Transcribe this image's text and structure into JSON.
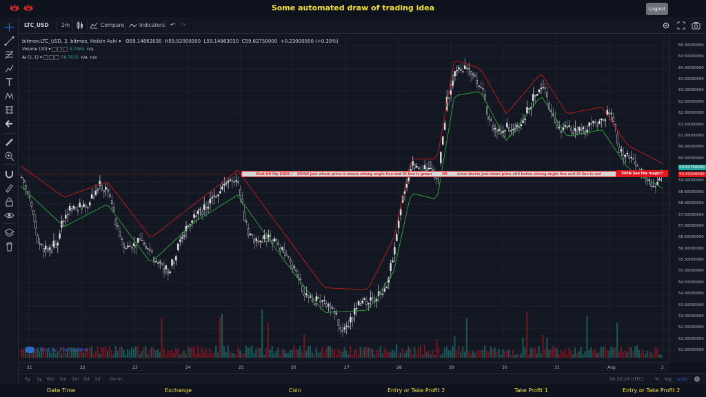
{
  "header": {
    "title": "Some automated draw of trading idea",
    "logout_label": "Logout"
  },
  "toolbar": {
    "symbol": "LTC_USD",
    "interval": "2m",
    "compare_label": "Compare",
    "indicators_label": "Indicators"
  },
  "legend": {
    "symbol_line": "bitmex:LTC_USD, 2, bitmex, Heikin Ashi",
    "open": "O59.14863030",
    "high": "H59.92000000",
    "low": "L59.14863030",
    "close": "C59.62750000",
    "change": "+0.23000000 (+0.39%)",
    "volume_label": "Volume (20)",
    "volume_value": "8.7884",
    "volume_na": "n/a",
    "ai_label": "AI (1, 1)",
    "ai_value": "58.7625",
    "ai_na1": "n/a",
    "ai_na2": "n/a"
  },
  "price_axis": {
    "labels": [
      "65.00000000",
      "64.50000000",
      "64.00000000",
      "63.50000000",
      "63.00000000",
      "62.50000000",
      "62.00000000",
      "61.50000000",
      "61.00000000",
      "60.50000000",
      "60.00000000",
      "59.50000000",
      "59.00000000",
      "58.50000000",
      "58.00000000",
      "57.50000000",
      "57.00000000",
      "56.50000000",
      "56.00000000",
      "55.50000000",
      "55.00000000",
      "54.50000000",
      "54.00000000",
      "53.50000000",
      "53.00000000",
      "52.50000000",
      "52.00000000",
      "51.50000000"
    ],
    "tag_top": "59.62750000",
    "tag_mid": "59.33200090",
    "tag_bottom": "58.99...",
    "tag_colors": {
      "top": "#26a69a",
      "mid": "#e3161e",
      "bottom": "#787b86"
    }
  },
  "time_axis": {
    "labels": [
      "21",
      "22",
      "23",
      "24",
      "25",
      "26",
      "27",
      "28",
      "29",
      "30",
      "31",
      "Aug",
      "2"
    ]
  },
  "bottom_bar": {
    "ranges": [
      "5y",
      "1y",
      "6m",
      "3m",
      "1m",
      "5d",
      "1d"
    ],
    "goto_label": "Go to...",
    "clock": "00:35:26 (UTC)",
    "percent": "%",
    "log": "log",
    "auto": "auto"
  },
  "annotation": {
    "part1": "Wait till flip ENDS  !",
    "part2": "DRAW just when:  price is above strong angle line and AI line is green",
    "part3": "OR",
    "part4": "draw shorts just when price still below strong angle line and AI line is red",
    "magic": "THEN See the magic!!"
  },
  "watermark": "Chart by TradingView",
  "footer": {
    "items": [
      "Date Time",
      "Exchange",
      "Coin",
      "Entry or Take Profit 2",
      "Take Profit 1",
      "Entry or Take Profit 2"
    ]
  },
  "colors": {
    "accent_yellow": "#f5e13c",
    "up": "#26a69a",
    "down": "#e3161e",
    "candle_white": "#e0e0e0",
    "background": "#131722",
    "grid": "#1e2230"
  },
  "chart_data": {
    "type": "candlestick",
    "ylim": [
      51.2,
      65.3
    ],
    "x_labels": [
      "21",
      "22",
      "23",
      "24",
      "25",
      "26",
      "27",
      "28",
      "29",
      "30",
      "31",
      "Aug",
      "2"
    ],
    "trend_closes": [
      [
        0,
        59.2
      ],
      [
        2,
        58.3
      ],
      [
        4,
        56.2
      ],
      [
        6,
        55.9
      ],
      [
        8,
        56.3
      ],
      [
        10,
        57.5
      ],
      [
        12,
        58.0
      ],
      [
        14,
        57.8
      ],
      [
        16,
        58.2
      ],
      [
        18,
        59.0
      ],
      [
        20,
        58.5
      ],
      [
        22,
        57.0
      ],
      [
        24,
        56.0
      ],
      [
        26,
        56.2
      ],
      [
        28,
        56.5
      ],
      [
        30,
        55.7
      ],
      [
        32,
        55.3
      ],
      [
        34,
        55.0
      ],
      [
        36,
        56.0
      ],
      [
        38,
        57.0
      ],
      [
        40,
        57.6
      ],
      [
        42,
        57.8
      ],
      [
        44,
        58.3
      ],
      [
        46,
        58.7
      ],
      [
        48,
        59.3
      ],
      [
        50,
        58.8
      ],
      [
        52,
        56.8
      ],
      [
        54,
        56.4
      ],
      [
        56,
        56.5
      ],
      [
        58,
        56.4
      ],
      [
        60,
        56.0
      ],
      [
        62,
        55.5
      ],
      [
        64,
        54.6
      ],
      [
        66,
        53.7
      ],
      [
        68,
        53.7
      ],
      [
        70,
        53.5
      ],
      [
        72,
        53.3
      ],
      [
        74,
        52.3
      ],
      [
        76,
        52.9
      ],
      [
        78,
        53.7
      ],
      [
        80,
        53.6
      ],
      [
        82,
        54.0
      ],
      [
        84,
        54.3
      ],
      [
        86,
        56.0
      ],
      [
        88,
        58.5
      ],
      [
        90,
        59.8
      ],
      [
        92,
        59.5
      ],
      [
        94,
        59.6
      ],
      [
        96,
        59.0
      ],
      [
        98,
        62.5
      ],
      [
        100,
        63.8
      ],
      [
        102,
        64.0
      ],
      [
        104,
        63.7
      ],
      [
        106,
        63.3
      ],
      [
        108,
        61.6
      ],
      [
        110,
        61.3
      ],
      [
        112,
        61.4
      ],
      [
        114,
        61.2
      ],
      [
        116,
        61.9
      ],
      [
        118,
        62.7
      ],
      [
        120,
        63.4
      ],
      [
        122,
        62.2
      ],
      [
        124,
        61.3
      ],
      [
        126,
        61.3
      ],
      [
        128,
        61.2
      ],
      [
        130,
        61.3
      ],
      [
        132,
        61.5
      ],
      [
        134,
        61.9
      ],
      [
        136,
        62.1
      ],
      [
        138,
        60.3
      ],
      [
        140,
        60.0
      ],
      [
        142,
        59.6
      ],
      [
        144,
        59.2
      ],
      [
        146,
        58.7
      ],
      [
        148,
        59.3
      ]
    ],
    "ai_line": [
      [
        0,
        58.8
      ],
      [
        10,
        57.0
      ],
      [
        20,
        58.0
      ],
      [
        30,
        55.4
      ],
      [
        40,
        57.2
      ],
      [
        50,
        58.4
      ],
      [
        60,
        55.7
      ],
      [
        70,
        53.2
      ],
      [
        80,
        53.3
      ],
      [
        86,
        55.0
      ],
      [
        90,
        58.5
      ],
      [
        96,
        58.2
      ],
      [
        100,
        62.8
      ],
      [
        106,
        63.0
      ],
      [
        112,
        60.8
      ],
      [
        120,
        62.8
      ],
      [
        126,
        61.0
      ],
      [
        134,
        61.3
      ],
      [
        140,
        59.6
      ],
      [
        148,
        58.7
      ]
    ],
    "resistance_line": [
      [
        0,
        59.7
      ],
      [
        10,
        58.3
      ],
      [
        20,
        59.0
      ],
      [
        30,
        56.5
      ],
      [
        40,
        58.0
      ],
      [
        50,
        59.5
      ],
      [
        60,
        56.9
      ],
      [
        70,
        54.3
      ],
      [
        80,
        54.2
      ],
      [
        86,
        56.5
      ],
      [
        90,
        60.0
      ],
      [
        96,
        60.0
      ],
      [
        100,
        64.4
      ],
      [
        106,
        64.0
      ],
      [
        112,
        62.0
      ],
      [
        120,
        63.8
      ],
      [
        126,
        62.0
      ],
      [
        134,
        62.3
      ],
      [
        140,
        60.6
      ],
      [
        148,
        59.8
      ]
    ],
    "volume_range": [
      0,
      20
    ]
  }
}
